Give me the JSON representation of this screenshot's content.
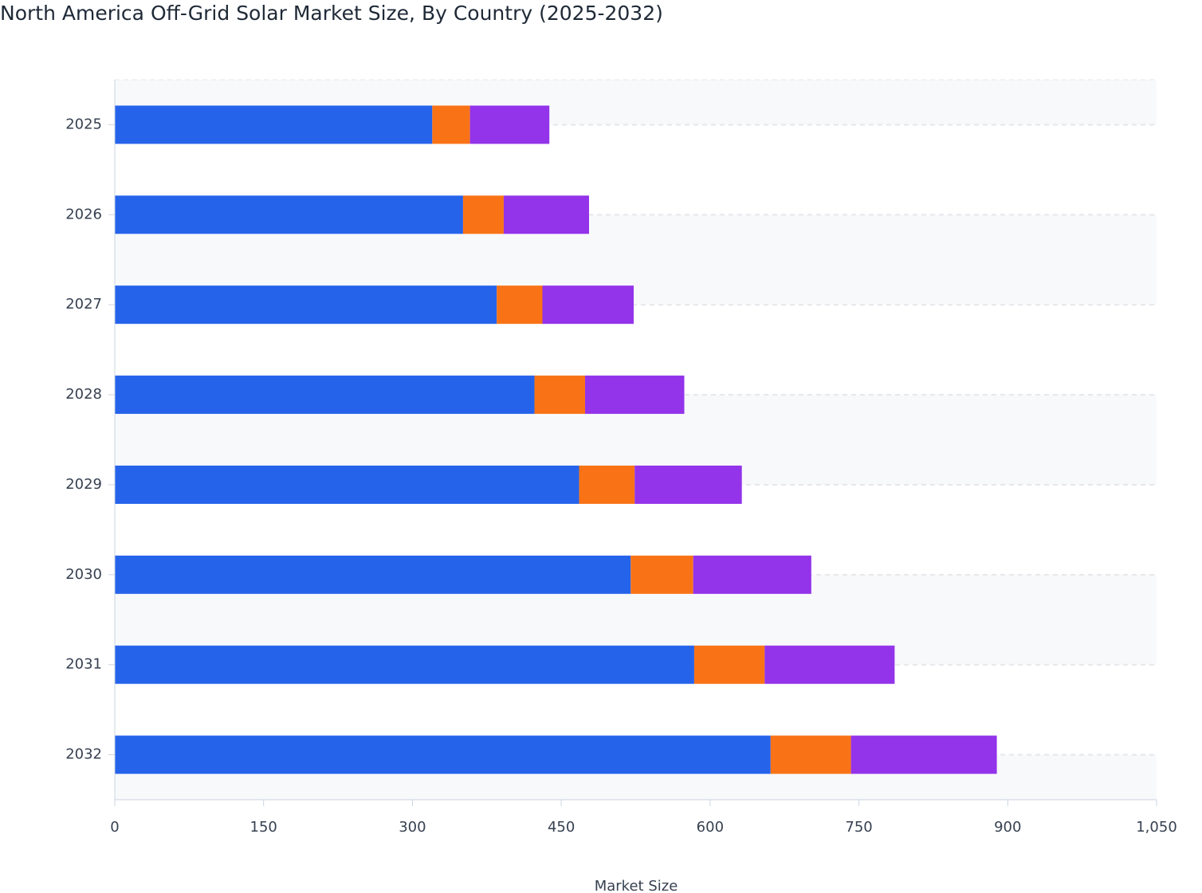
{
  "chart_data": {
    "type": "stacked-bar-horizontal",
    "title": "North America Off-Grid Solar Market Size, By Country (2025-2032)",
    "x_label": "Market Size",
    "categories": [
      "2025",
      "2026",
      "2027",
      "2028",
      "2029",
      "2030",
      "2031",
      "2032"
    ],
    "series": [
      {
        "color": "#2563eb",
        "values": [
          320,
          351,
          385,
          423,
          468,
          520,
          584,
          661
        ]
      },
      {
        "color": "#f97316",
        "values": [
          38,
          41,
          46,
          51,
          56,
          63,
          71,
          81
        ]
      },
      {
        "color": "#9333ea",
        "values": [
          80,
          86,
          92,
          100,
          108,
          119,
          131,
          147
        ]
      }
    ],
    "xlim": [
      0,
      1050
    ],
    "xticks": [
      0,
      150,
      300,
      450,
      600,
      750,
      900,
      {
        "value": 1050,
        "label": "1,050"
      }
    ],
    "grid": true
  }
}
